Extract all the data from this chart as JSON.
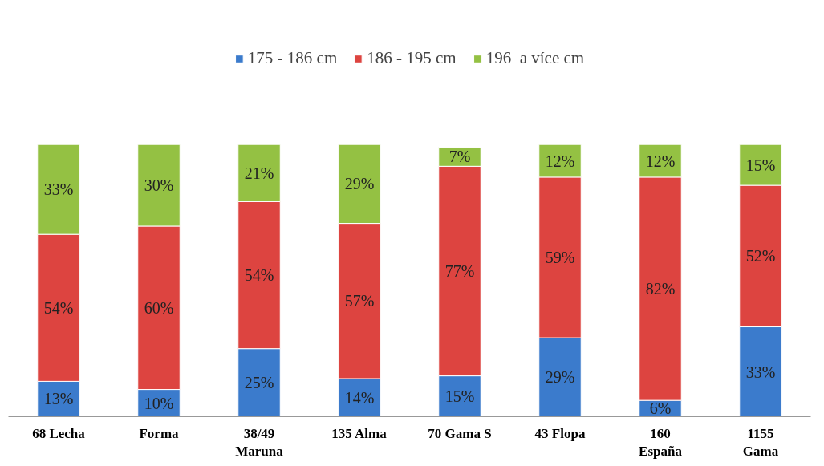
{
  "chart_data": {
    "type": "bar",
    "stacked": true,
    "legend": "top",
    "grid": false,
    "categories": [
      "68 Lecha",
      "Forma",
      "38/49\nMaruna",
      "135 Alma",
      "70 Gama S",
      "43 Flopa",
      "160\nEspaña",
      "1155\nGama"
    ],
    "series": [
      {
        "name": "175 - 186 cm",
        "color": "#3b7bcc",
        "values": [
          13,
          10,
          25,
          14,
          15,
          29,
          6,
          33
        ],
        "value_labels": [
          "13%",
          "10%",
          "25%",
          "14%",
          "15%",
          "29%",
          "6%",
          "33%"
        ]
      },
      {
        "name": "186 - 195 cm",
        "color": "#dd4440",
        "values": [
          54,
          60,
          54,
          57,
          77,
          59,
          82,
          52
        ],
        "value_labels": [
          "54%",
          "60%",
          "54%",
          "57%",
          "77%",
          "59%",
          "82%",
          "52%"
        ]
      },
      {
        "name": "196  a více cm",
        "color": "#94c143",
        "values": [
          33,
          30,
          21,
          29,
          7,
          12,
          12,
          15
        ],
        "value_labels": [
          "33%",
          "30%",
          "21%",
          "29%",
          "7%",
          "12%",
          "12%",
          "15%"
        ]
      }
    ]
  }
}
